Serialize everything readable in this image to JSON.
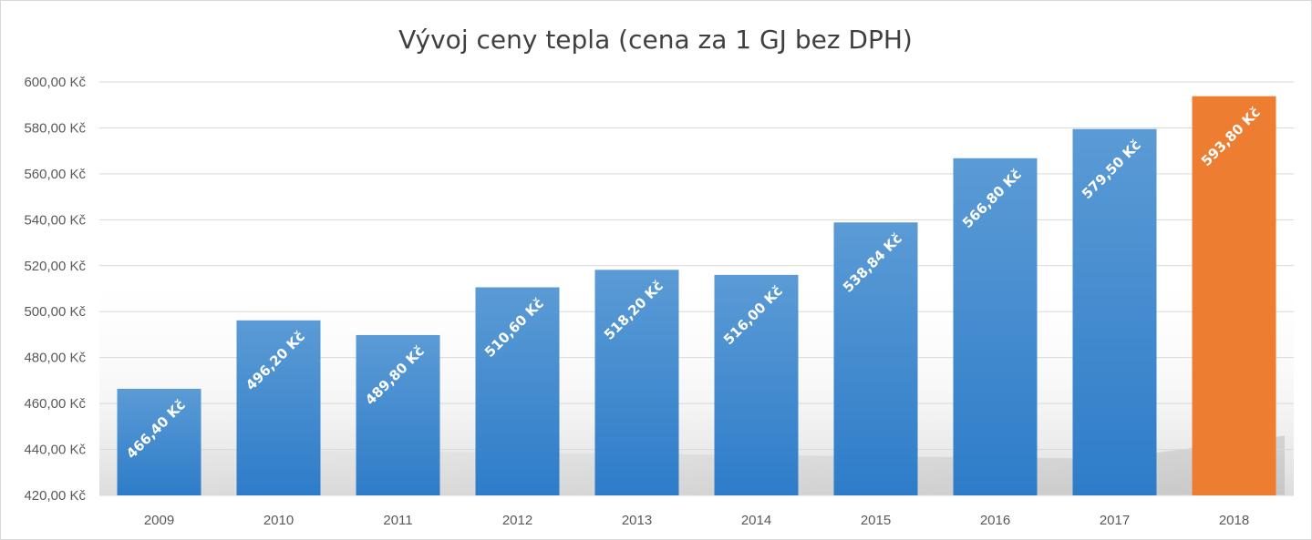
{
  "chart_data": {
    "type": "bar",
    "title": "Vývoj ceny tepla (cena za 1 GJ bez DPH)",
    "xlabel": "",
    "ylabel": "",
    "categories": [
      "2009",
      "2010",
      "2011",
      "2012",
      "2013",
      "2014",
      "2015",
      "2016",
      "2017",
      "2018"
    ],
    "values": [
      466.4,
      496.2,
      489.8,
      510.6,
      518.2,
      516.0,
      538.84,
      566.8,
      579.5,
      593.8
    ],
    "data_labels": [
      "466,40 Kč",
      "496,20 Kč",
      "489,80 Kč",
      "510,60 Kč",
      "518,20 Kč",
      "516,00 Kč",
      "538,84 Kč",
      "566,80 Kč",
      "579,50 Kč",
      "593,80 Kč"
    ],
    "ylim": [
      420,
      600
    ],
    "yticks": [
      420,
      440,
      460,
      480,
      500,
      520,
      540,
      560,
      580,
      600
    ],
    "ytick_labels": [
      "420,00 Kč",
      "440,00 Kč",
      "460,00 Kč",
      "480,00 Kč",
      "500,00 Kč",
      "520,00 Kč",
      "540,00 Kč",
      "560,00 Kč",
      "580,00 Kč",
      "600,00 Kč"
    ],
    "grid": true,
    "legend": "none",
    "colors": {
      "bar_top": "#5b9bd5",
      "bar_bottom": "#2e7cc9",
      "highlight": "#ed7d31",
      "highlight_category": "2018"
    }
  }
}
